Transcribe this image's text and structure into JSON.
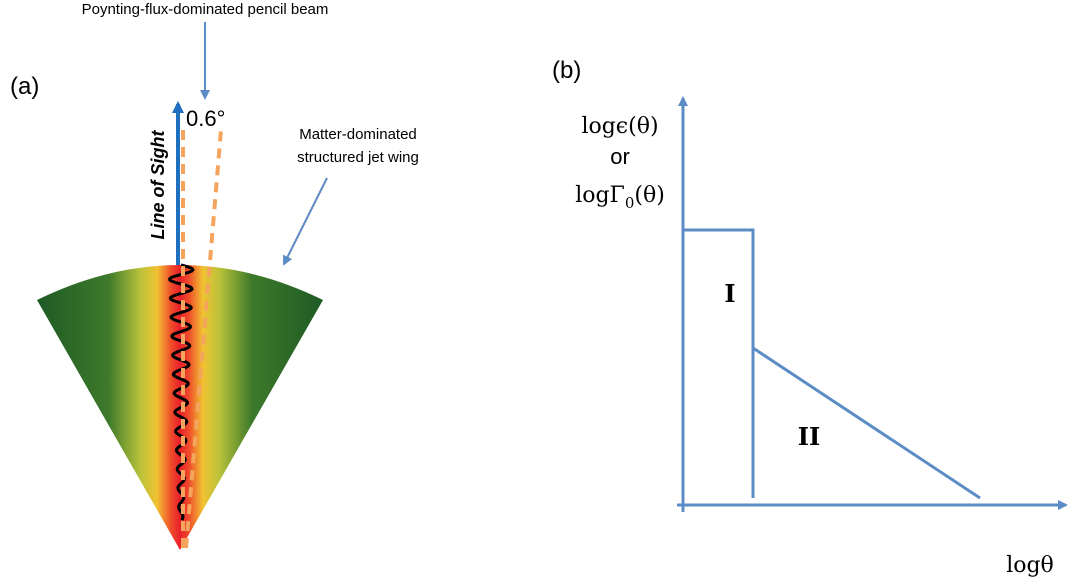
{
  "panel_a": {
    "label": "(a)",
    "beam_label": "Poynting-flux-dominated pencil beam",
    "angle_label": "0.6°",
    "line_of_sight": "Line of Sight",
    "wing_label": [
      "Matter-dominated",
      "structured jet wing"
    ]
  },
  "panel_b": {
    "label": "(b)",
    "y_label": {
      "top": "logϵ(θ)",
      "middle": "or",
      "bottom": {
        "base": "logΓ",
        "sub": "0",
        "arg": "(θ)"
      }
    },
    "x_label": "logθ",
    "regions": [
      "I",
      "II"
    ]
  }
}
